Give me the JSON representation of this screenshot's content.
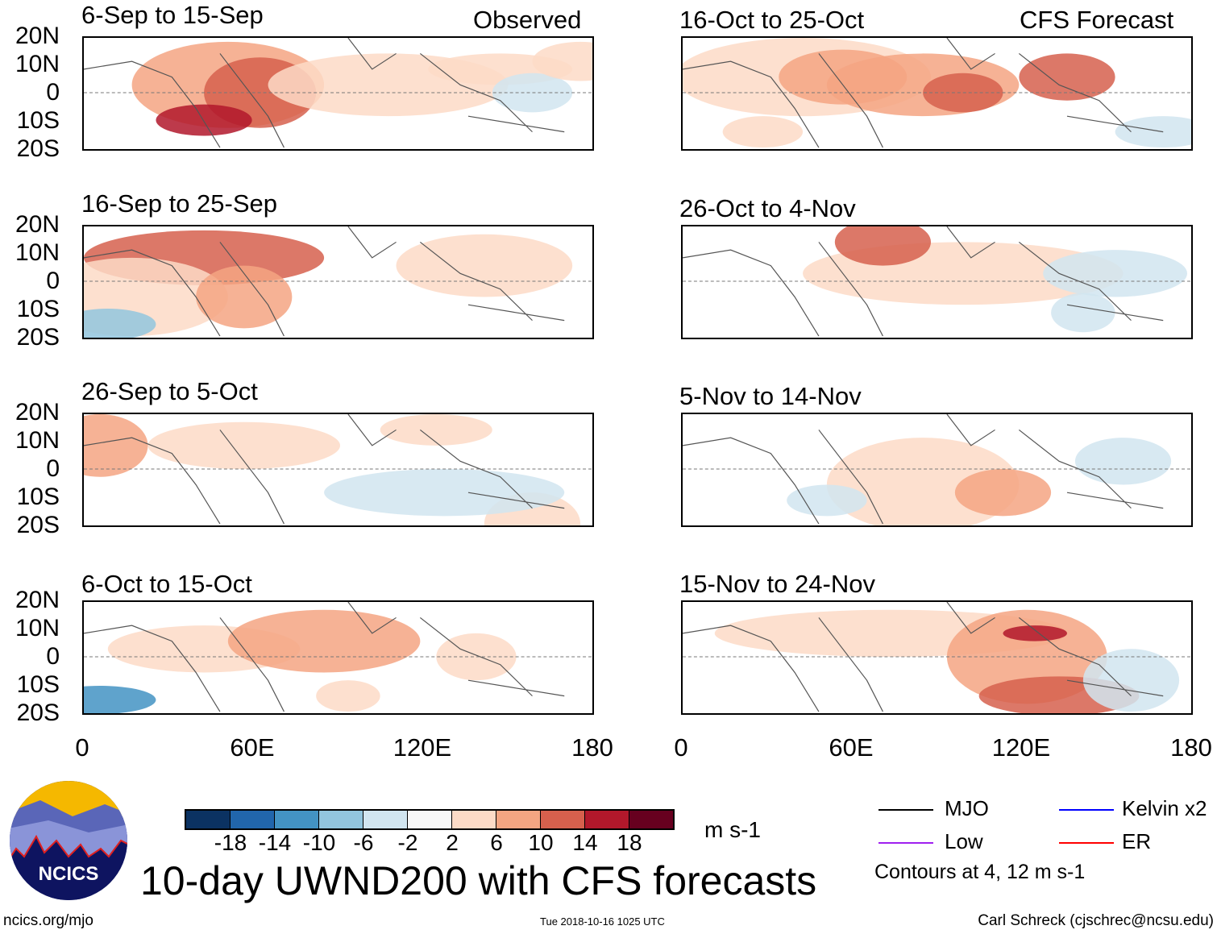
{
  "left_panels": {
    "header": "Observed",
    "titles": [
      "6-Sep to 15-Sep",
      "16-Sep to 25-Sep",
      "26-Sep to 5-Oct",
      "6-Oct to 15-Oct"
    ]
  },
  "right_panels": {
    "header": "CFS Forecast",
    "titles": [
      "16-Oct to 25-Oct",
      "26-Oct to 4-Nov",
      "5-Nov to 14-Nov",
      "15-Nov to 24-Nov"
    ]
  },
  "y_ticks": [
    "20N",
    "10N",
    "0",
    "10S",
    "20S"
  ],
  "x_ticks": [
    "0",
    "60E",
    "120E",
    "180"
  ],
  "colorbar": {
    "colors": [
      "#0b3262",
      "#2166ac",
      "#4393c3",
      "#92c5de",
      "#d1e5f0",
      "#f7f7f7",
      "#fddbc7",
      "#f4a582",
      "#d6604d",
      "#b2182b",
      "#67001f"
    ],
    "labels": [
      "-18",
      "-14",
      "-10",
      "-6",
      "-2",
      "2",
      "6",
      "10",
      "14",
      "18"
    ],
    "units": "m s-1"
  },
  "legend": {
    "items": [
      {
        "label": "MJO",
        "color": "#000000"
      },
      {
        "label": "Kelvin x2",
        "color": "#0000ff"
      },
      {
        "label": "Low",
        "color": "#a020f0"
      },
      {
        "label": "ER",
        "color": "#ff0000"
      }
    ],
    "note": "Contours at 4, 12 m s-1"
  },
  "logo_text": "NCICS",
  "title": "10-day UWND200 with CFS forecasts",
  "footer": {
    "url": "ncics.org/mjo",
    "timestamp": "Tue 2018-10-16 1025 UTC",
    "author": "Carl Schreck (cjschrec@ncsu.edu)"
  }
}
